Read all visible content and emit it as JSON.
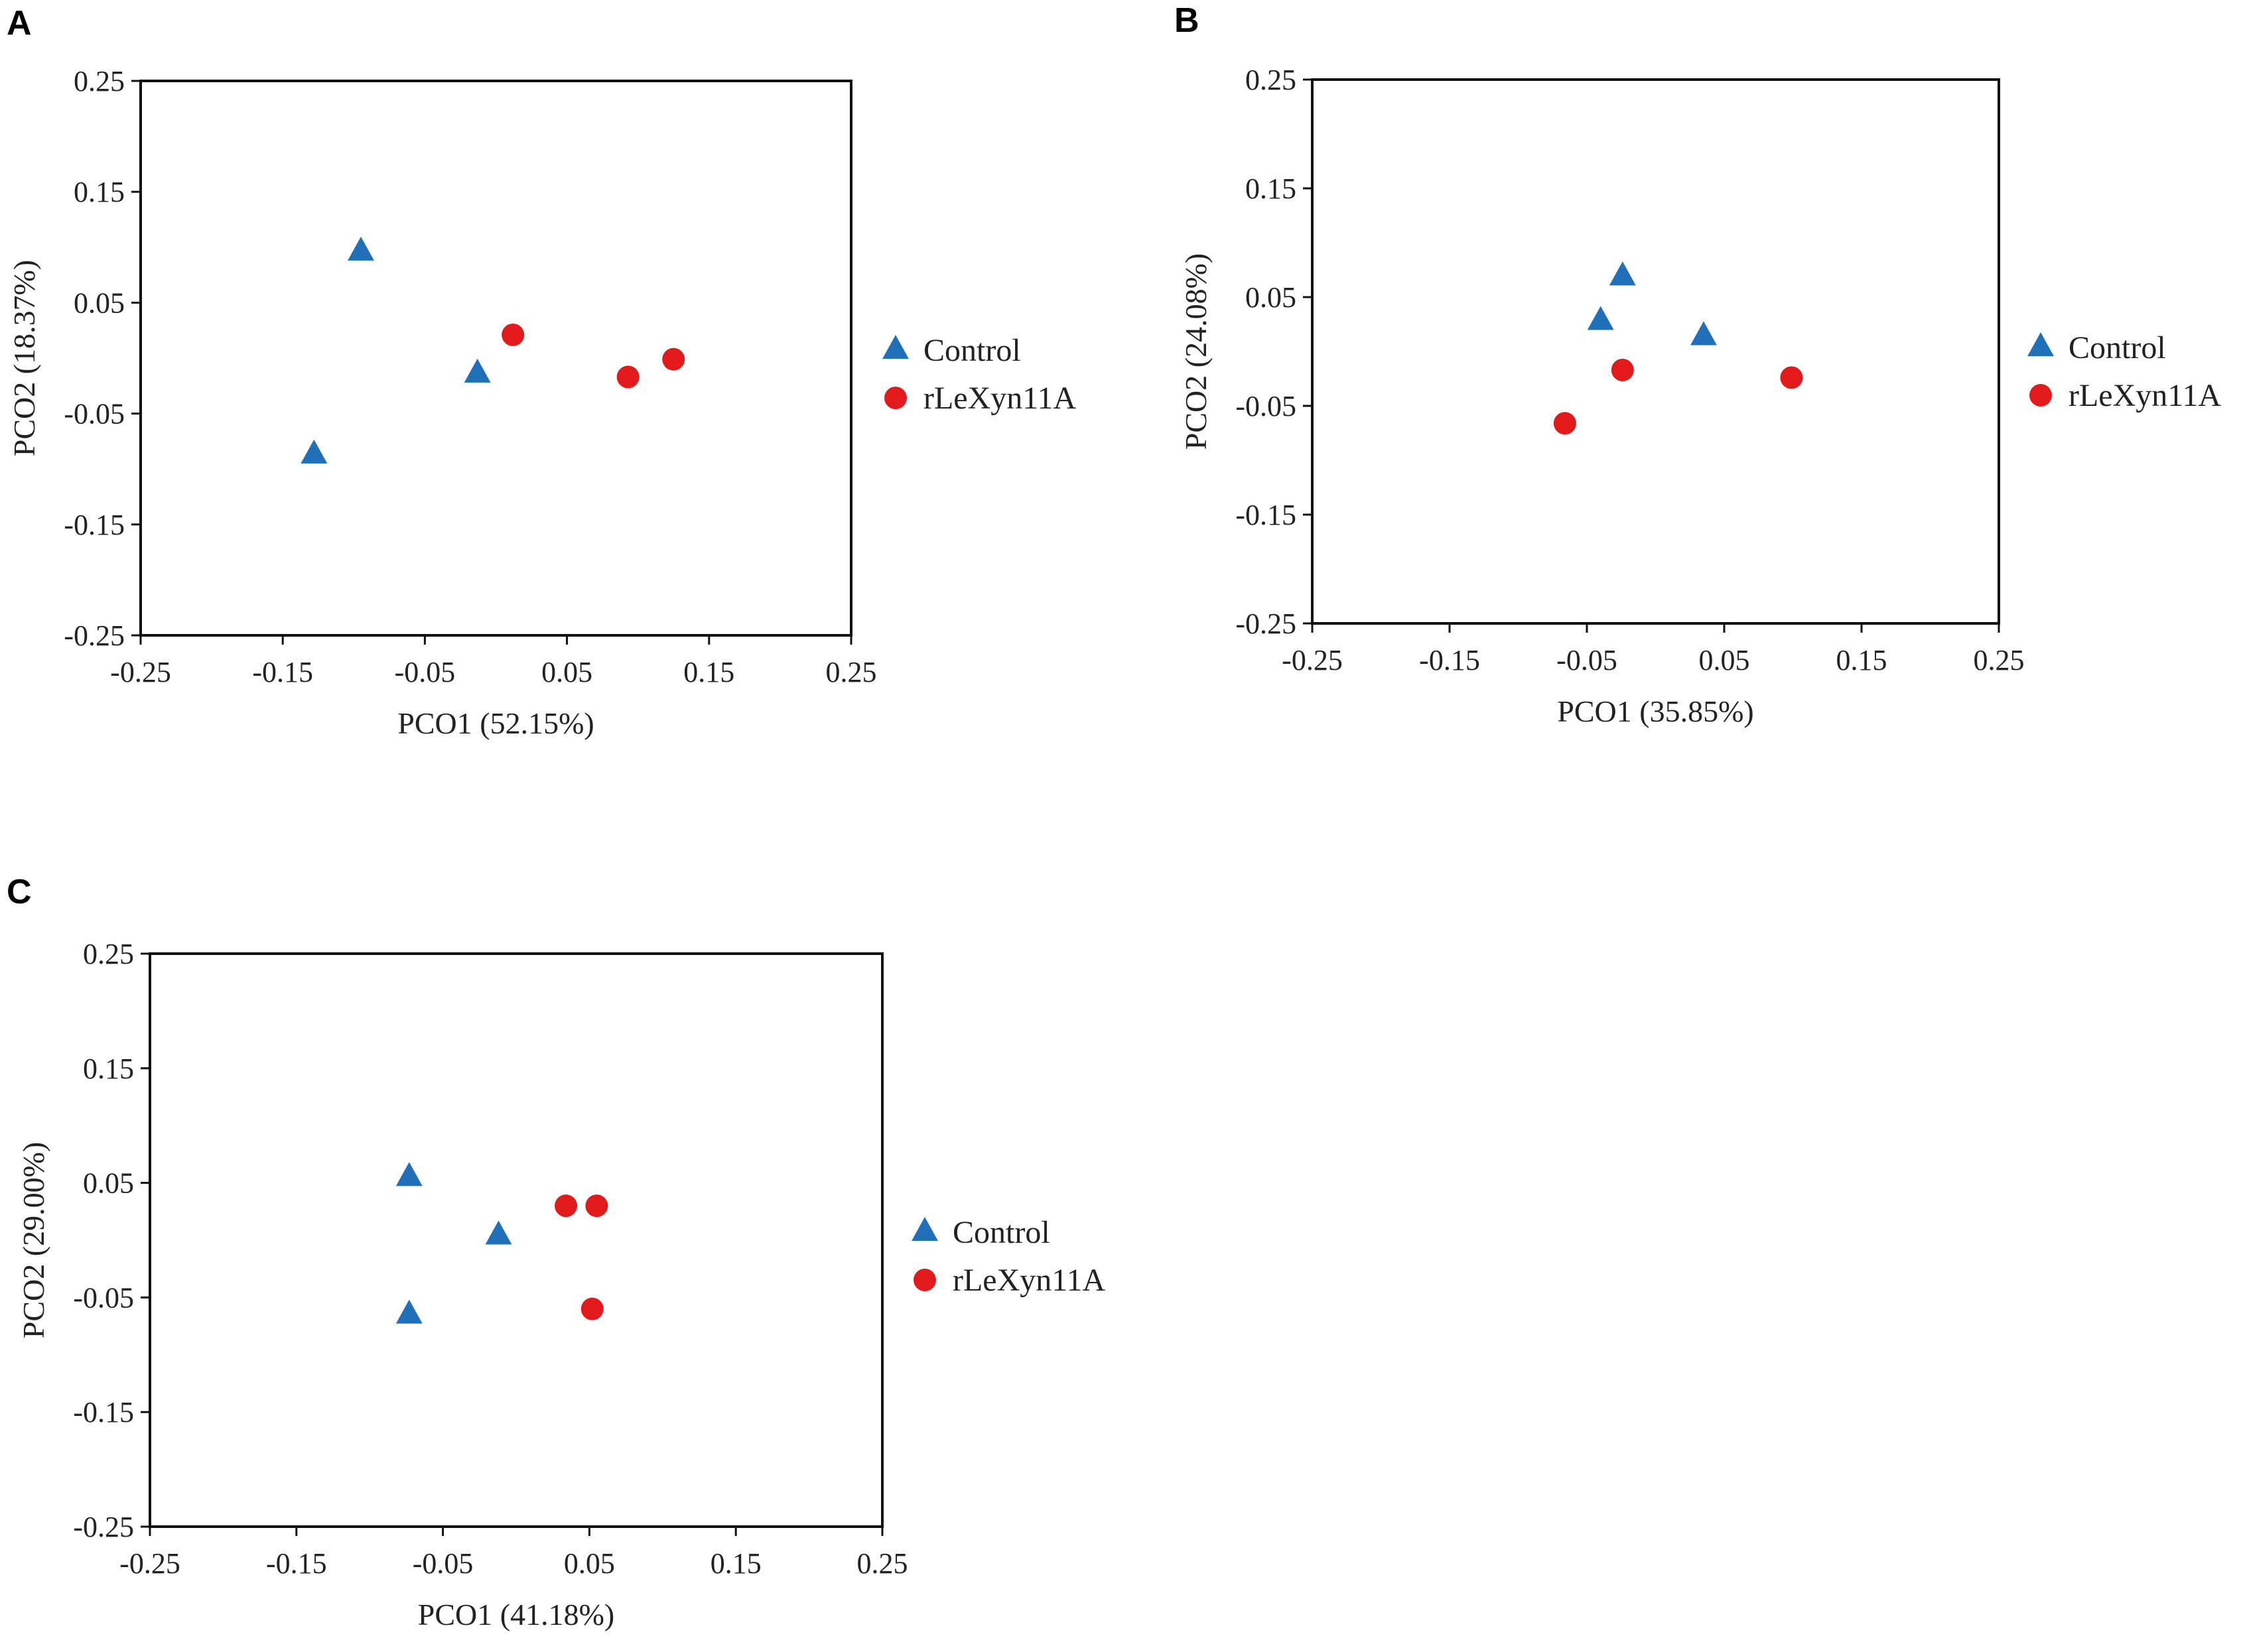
{
  "figure": {
    "panels": [
      "A",
      "B",
      "C"
    ]
  },
  "colors": {
    "control": "#1f70b8",
    "treatment": "#e31a1c"
  },
  "chart_data": [
    {
      "type": "scatter",
      "panel": "A",
      "title": "",
      "xlabel": "PCO1 (52.15%)",
      "ylabel": "PCO2 (18.37%)",
      "xlim": [
        -0.25,
        0.25
      ],
      "ylim": [
        -0.25,
        0.25
      ],
      "xticks": [
        -0.25,
        -0.15,
        -0.05,
        0.05,
        0.15,
        0.25
      ],
      "yticks": [
        -0.25,
        -0.15,
        -0.05,
        0.05,
        0.15,
        0.25
      ],
      "xtick_labels": [
        "-0.25",
        "-0.15",
        "-0.05",
        "0.05",
        "0.15",
        "0.25"
      ],
      "ytick_labels": [
        "-0.25",
        "-0.15",
        "-0.05",
        "0.05",
        "0.15",
        "0.25"
      ],
      "legend_position": "right",
      "series": [
        {
          "name": "Control",
          "marker": "triangle",
          "color": "#1f70b8",
          "points": [
            [
              -0.095,
              0.097
            ],
            [
              -0.013,
              -0.013
            ],
            [
              -0.128,
              -0.086
            ]
          ]
        },
        {
          "name": "rLeXyn11A",
          "marker": "circle",
          "color": "#e31a1c",
          "points": [
            [
              0.012,
              0.021
            ],
            [
              0.093,
              -0.017
            ],
            [
              0.125,
              -0.001
            ]
          ]
        }
      ]
    },
    {
      "type": "scatter",
      "panel": "B",
      "title": "",
      "xlabel": "PCO1 (35.85%)",
      "ylabel": "PCO2 (24.08%)",
      "xlim": [
        -0.25,
        0.25
      ],
      "ylim": [
        -0.25,
        0.25
      ],
      "xticks": [
        -0.25,
        -0.15,
        -0.05,
        0.05,
        0.15,
        0.25
      ],
      "yticks": [
        -0.25,
        -0.15,
        -0.05,
        0.05,
        0.15,
        0.25
      ],
      "xtick_labels": [
        "-0.25",
        "-0.15",
        "-0.05",
        "0.05",
        "0.15",
        "0.25"
      ],
      "ytick_labels": [
        "-0.25",
        "-0.15",
        "-0.05",
        "0.05",
        "0.15",
        "0.25"
      ],
      "legend_position": "right",
      "series": [
        {
          "name": "Control",
          "marker": "triangle",
          "color": "#1f70b8",
          "points": [
            [
              -0.024,
              0.07
            ],
            [
              -0.04,
              0.029
            ],
            [
              0.035,
              0.015
            ]
          ]
        },
        {
          "name": "rLeXyn11A",
          "marker": "circle",
          "color": "#e31a1c",
          "points": [
            [
              -0.024,
              -0.017
            ],
            [
              0.099,
              -0.024
            ],
            [
              -0.066,
              -0.066
            ]
          ]
        }
      ]
    },
    {
      "type": "scatter",
      "panel": "C",
      "title": "",
      "xlabel": "PCO1 (41.18%)",
      "ylabel": "PCO2 (29.00%)",
      "xlim": [
        -0.25,
        0.25
      ],
      "ylim": [
        -0.25,
        0.25
      ],
      "xticks": [
        -0.25,
        -0.15,
        -0.05,
        0.05,
        0.15,
        0.25
      ],
      "yticks": [
        -0.25,
        -0.15,
        -0.05,
        0.05,
        0.15,
        0.25
      ],
      "xtick_labels": [
        "-0.25",
        "-0.15",
        "-0.05",
        "0.05",
        "0.15",
        "0.25"
      ],
      "ytick_labels": [
        "-0.25",
        "-0.15",
        "-0.05",
        "0.05",
        "0.15",
        "0.25"
      ],
      "legend_position": "right",
      "series": [
        {
          "name": "Control",
          "marker": "triangle",
          "color": "#1f70b8",
          "points": [
            [
              -0.073,
              0.056
            ],
            [
              -0.012,
              0.005
            ],
            [
              -0.073,
              -0.064
            ]
          ]
        },
        {
          "name": "rLeXyn11A",
          "marker": "circle",
          "color": "#e31a1c",
          "points": [
            [
              0.034,
              0.03
            ],
            [
              0.055,
              0.03
            ],
            [
              0.052,
              -0.06
            ]
          ]
        }
      ]
    }
  ]
}
